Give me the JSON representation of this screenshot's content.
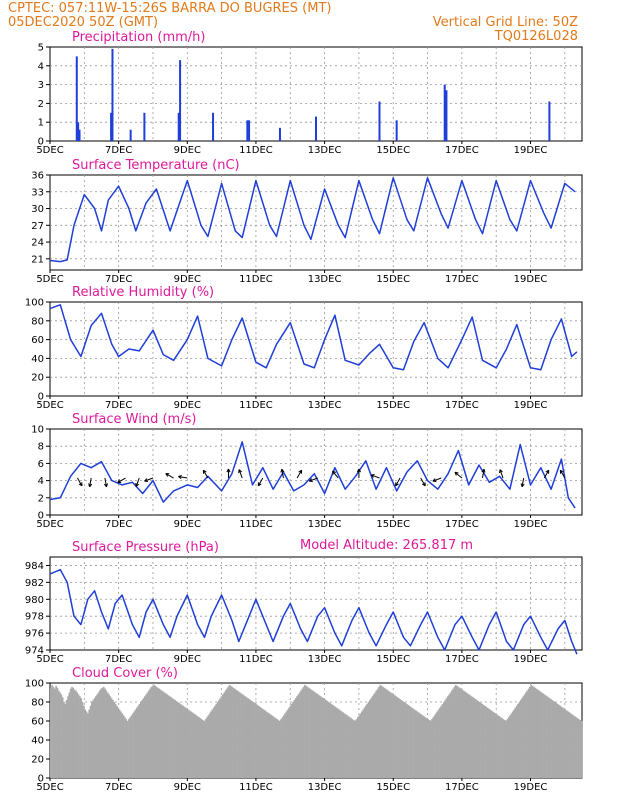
{
  "header": {
    "line1_left": "CPTEC:   057:11W-15:26S   BARRA DO BUGRES (MT)",
    "line2_left": "05DEC2020 50Z (GMT)",
    "line2_right": "Vertical Grid Line: 50Z",
    "line3_right": "TQ0126L028"
  },
  "colors": {
    "header": "#e07a1a",
    "panel_title": "#e0199a",
    "series": "#1f3fd8",
    "cloud": "#aaaaaa"
  },
  "x_labels": [
    "5DEC",
    "7DEC",
    "9DEC",
    "11DEC",
    "13DEC",
    "15DEC",
    "17DEC",
    "19DEC"
  ],
  "chart_data": [
    {
      "id": "precip",
      "type": "bar",
      "title": "Precipitation (mm/h)",
      "ylim": [
        0,
        5
      ],
      "yticks": [
        0,
        1,
        2,
        3,
        4,
        5
      ],
      "x_unit": "days since 5DEC 00Z",
      "points": [
        [
          0.78,
          4.5
        ],
        [
          0.82,
          1.0
        ],
        [
          0.86,
          0.6
        ],
        [
          1.78,
          1.5
        ],
        [
          1.82,
          4.9
        ],
        [
          2.35,
          0.6
        ],
        [
          2.75,
          1.5
        ],
        [
          3.75,
          1.5
        ],
        [
          3.79,
          4.3
        ],
        [
          4.75,
          1.5
        ],
        [
          5.75,
          1.1
        ],
        [
          5.8,
          1.1
        ],
        [
          6.7,
          0.7
        ],
        [
          7.75,
          1.3
        ],
        [
          9.6,
          2.1
        ],
        [
          10.1,
          1.1
        ],
        [
          11.5,
          3.0
        ],
        [
          11.55,
          2.7
        ],
        [
          14.55,
          2.1
        ]
      ]
    },
    {
      "id": "temp",
      "type": "line",
      "title": "Surface Temperature (nC)",
      "ylim": [
        19,
        36
      ],
      "yticks": [
        21,
        24,
        27,
        30,
        33,
        36
      ],
      "x_unit": "days since 5DEC 00Z",
      "points": [
        [
          0.0,
          20.7
        ],
        [
          0.3,
          20.5
        ],
        [
          0.5,
          20.8
        ],
        [
          0.7,
          27.0
        ],
        [
          1.0,
          32.5
        ],
        [
          1.3,
          30.0
        ],
        [
          1.5,
          26.0
        ],
        [
          1.7,
          31.5
        ],
        [
          2.0,
          34.0
        ],
        [
          2.3,
          30.0
        ],
        [
          2.5,
          26.0
        ],
        [
          2.8,
          31.0
        ],
        [
          3.1,
          33.5
        ],
        [
          3.5,
          26.0
        ],
        [
          4.0,
          35.0
        ],
        [
          4.4,
          27.0
        ],
        [
          4.6,
          25.0
        ],
        [
          5.0,
          34.5
        ],
        [
          5.4,
          26.0
        ],
        [
          5.6,
          24.8
        ],
        [
          6.0,
          35.0
        ],
        [
          6.4,
          27.0
        ],
        [
          6.6,
          25.0
        ],
        [
          7.0,
          35.0
        ],
        [
          7.4,
          27.0
        ],
        [
          7.6,
          24.5
        ],
        [
          8.0,
          33.5
        ],
        [
          8.4,
          27.0
        ],
        [
          8.6,
          24.8
        ],
        [
          9.0,
          35.0
        ],
        [
          9.4,
          28.0
        ],
        [
          9.6,
          25.5
        ],
        [
          10.0,
          35.5
        ],
        [
          10.4,
          28.0
        ],
        [
          10.6,
          26.0
        ],
        [
          11.0,
          35.5
        ],
        [
          11.4,
          29.0
        ],
        [
          11.6,
          26.5
        ],
        [
          12.0,
          35.0
        ],
        [
          12.4,
          28.0
        ],
        [
          12.6,
          25.5
        ],
        [
          13.0,
          35.0
        ],
        [
          13.4,
          28.0
        ],
        [
          13.6,
          26.0
        ],
        [
          14.0,
          35.0
        ],
        [
          14.4,
          29.0
        ],
        [
          14.6,
          26.5
        ],
        [
          15.0,
          34.5
        ],
        [
          15.3,
          33.0
        ]
      ]
    },
    {
      "id": "rh",
      "type": "line",
      "title": "Relative Humidity (%)",
      "ylim": [
        0,
        100
      ],
      "yticks": [
        0,
        20,
        40,
        60,
        80,
        100
      ],
      "x_unit": "days since 5DEC 00Z",
      "points": [
        [
          0.0,
          93.0
        ],
        [
          0.3,
          97.0
        ],
        [
          0.6,
          60.0
        ],
        [
          0.9,
          42.0
        ],
        [
          1.2,
          75.0
        ],
        [
          1.5,
          88.0
        ],
        [
          1.8,
          55.0
        ],
        [
          2.0,
          42.0
        ],
        [
          2.3,
          50.0
        ],
        [
          2.6,
          48.0
        ],
        [
          3.0,
          70.0
        ],
        [
          3.3,
          44.0
        ],
        [
          3.6,
          38.0
        ],
        [
          4.0,
          60.0
        ],
        [
          4.3,
          85.0
        ],
        [
          4.6,
          40.0
        ],
        [
          5.0,
          32.0
        ],
        [
          5.3,
          60.0
        ],
        [
          5.6,
          83.0
        ],
        [
          6.0,
          36.0
        ],
        [
          6.3,
          30.0
        ],
        [
          6.6,
          55.0
        ],
        [
          7.0,
          78.0
        ],
        [
          7.4,
          34.0
        ],
        [
          7.7,
          30.0
        ],
        [
          8.0,
          60.0
        ],
        [
          8.3,
          86.0
        ],
        [
          8.6,
          38.0
        ],
        [
          9.0,
          33.0
        ],
        [
          9.3,
          45.0
        ],
        [
          9.6,
          55.0
        ],
        [
          10.0,
          30.0
        ],
        [
          10.3,
          28.0
        ],
        [
          10.6,
          58.0
        ],
        [
          10.9,
          78.0
        ],
        [
          11.3,
          40.0
        ],
        [
          11.6,
          30.0
        ],
        [
          12.0,
          60.0
        ],
        [
          12.3,
          84.0
        ],
        [
          12.6,
          38.0
        ],
        [
          13.0,
          30.0
        ],
        [
          13.3,
          50.0
        ],
        [
          13.6,
          76.0
        ],
        [
          14.0,
          30.0
        ],
        [
          14.3,
          28.0
        ],
        [
          14.6,
          60.0
        ],
        [
          14.9,
          82.0
        ],
        [
          15.2,
          42.0
        ],
        [
          15.35,
          47.0
        ]
      ]
    },
    {
      "id": "wind",
      "type": "line",
      "title": "Surface Wind (m/s)",
      "ylim": [
        0,
        10
      ],
      "yticks": [
        0,
        2,
        4,
        6,
        8,
        10
      ],
      "x_unit": "days since 5DEC 00Z",
      "points": [
        [
          0.0,
          1.8
        ],
        [
          0.3,
          2.0
        ],
        [
          0.6,
          4.5
        ],
        [
          0.9,
          6.0
        ],
        [
          1.2,
          5.5
        ],
        [
          1.5,
          6.2
        ],
        [
          1.8,
          4.0
        ],
        [
          2.1,
          3.5
        ],
        [
          2.4,
          3.8
        ],
        [
          2.7,
          2.5
        ],
        [
          3.0,
          4.0
        ],
        [
          3.3,
          1.5
        ],
        [
          3.6,
          2.8
        ],
        [
          4.0,
          3.5
        ],
        [
          4.3,
          3.2
        ],
        [
          4.6,
          4.5
        ],
        [
          5.0,
          2.8
        ],
        [
          5.3,
          4.8
        ],
        [
          5.6,
          8.5
        ],
        [
          5.9,
          3.5
        ],
        [
          6.2,
          5.5
        ],
        [
          6.5,
          3.0
        ],
        [
          6.8,
          5.0
        ],
        [
          7.1,
          2.8
        ],
        [
          7.4,
          3.5
        ],
        [
          7.7,
          4.8
        ],
        [
          8.0,
          2.5
        ],
        [
          8.3,
          5.5
        ],
        [
          8.6,
          3.0
        ],
        [
          8.9,
          4.5
        ],
        [
          9.2,
          6.3
        ],
        [
          9.5,
          3.0
        ],
        [
          9.8,
          5.5
        ],
        [
          10.1,
          2.8
        ],
        [
          10.4,
          5.0
        ],
        [
          10.7,
          6.3
        ],
        [
          11.0,
          4.0
        ],
        [
          11.3,
          3.0
        ],
        [
          11.6,
          4.8
        ],
        [
          11.9,
          7.5
        ],
        [
          12.2,
          3.5
        ],
        [
          12.5,
          5.8
        ],
        [
          12.8,
          3.8
        ],
        [
          13.1,
          4.5
        ],
        [
          13.4,
          3.0
        ],
        [
          13.7,
          8.2
        ],
        [
          14.0,
          3.5
        ],
        [
          14.3,
          5.5
        ],
        [
          14.6,
          3.0
        ],
        [
          14.9,
          6.5
        ],
        [
          15.1,
          2.0
        ],
        [
          15.3,
          0.8
        ]
      ],
      "arrows_x": [
        0.8,
        1.2,
        1.6,
        2.2,
        2.6,
        3.0,
        3.6,
        4.0,
        4.6,
        5.2,
        5.6,
        6.2,
        6.8,
        7.2,
        7.8,
        8.4,
        9.0,
        9.6,
        10.2,
        10.8,
        11.4,
        12.0,
        12.6,
        13.2,
        13.8,
        14.4,
        15.0
      ],
      "arrows_angle": [
        300,
        260,
        280,
        210,
        250,
        200,
        150,
        170,
        120,
        90,
        110,
        240,
        100,
        60,
        200,
        130,
        90,
        160,
        240,
        300,
        200,
        140,
        80,
        110,
        260,
        60,
        120
      ]
    },
    {
      "id": "pres",
      "type": "line",
      "title": "Surface Pressure (hPa)",
      "ylim": [
        974,
        985
      ],
      "yticks": [
        974,
        976,
        978,
        980,
        982,
        984
      ],
      "x_unit": "days since 5DEC 00Z",
      "points": [
        [
          0.0,
          983.0
        ],
        [
          0.3,
          983.5
        ],
        [
          0.5,
          982.0
        ],
        [
          0.7,
          978.0
        ],
        [
          0.9,
          977.0
        ],
        [
          1.1,
          980.0
        ],
        [
          1.3,
          981.0
        ],
        [
          1.5,
          978.5
        ],
        [
          1.7,
          976.5
        ],
        [
          1.9,
          979.5
        ],
        [
          2.1,
          980.5
        ],
        [
          2.4,
          977.0
        ],
        [
          2.6,
          975.5
        ],
        [
          2.8,
          978.5
        ],
        [
          3.0,
          980.0
        ],
        [
          3.3,
          977.0
        ],
        [
          3.5,
          975.5
        ],
        [
          3.7,
          978.0
        ],
        [
          4.0,
          980.5
        ],
        [
          4.3,
          977.0
        ],
        [
          4.5,
          975.5
        ],
        [
          4.7,
          978.0
        ],
        [
          5.0,
          980.5
        ],
        [
          5.3,
          977.5
        ],
        [
          5.5,
          975.0
        ],
        [
          5.8,
          978.0
        ],
        [
          6.0,
          980.0
        ],
        [
          6.3,
          977.0
        ],
        [
          6.5,
          975.0
        ],
        [
          6.8,
          978.0
        ],
        [
          7.0,
          979.5
        ],
        [
          7.3,
          976.5
        ],
        [
          7.5,
          975.0
        ],
        [
          7.8,
          978.0
        ],
        [
          8.0,
          979.0
        ],
        [
          8.3,
          976.0
        ],
        [
          8.5,
          974.5
        ],
        [
          8.8,
          977.5
        ],
        [
          9.0,
          979.0
        ],
        [
          9.3,
          976.0
        ],
        [
          9.5,
          974.5
        ],
        [
          9.8,
          977.0
        ],
        [
          10.0,
          978.5
        ],
        [
          10.3,
          975.5
        ],
        [
          10.5,
          974.5
        ],
        [
          10.8,
          977.0
        ],
        [
          11.0,
          978.5
        ],
        [
          11.3,
          975.5
        ],
        [
          11.5,
          974.0
        ],
        [
          11.8,
          977.0
        ],
        [
          12.0,
          978.0
        ],
        [
          12.3,
          975.5
        ],
        [
          12.5,
          974.0
        ],
        [
          12.8,
          977.0
        ],
        [
          13.0,
          978.5
        ],
        [
          13.3,
          975.0
        ],
        [
          13.5,
          974.0
        ],
        [
          13.8,
          977.0
        ],
        [
          14.0,
          978.0
        ],
        [
          14.3,
          975.5
        ],
        [
          14.5,
          974.0
        ],
        [
          14.8,
          976.5
        ],
        [
          15.0,
          977.5
        ],
        [
          15.2,
          975.0
        ],
        [
          15.35,
          973.5
        ]
      ],
      "altitude_label": "Model Altitude: 265.817 m"
    },
    {
      "id": "cloud",
      "type": "bar",
      "title": "Cloud Cover (%)",
      "ylim": [
        0,
        100
      ],
      "yticks": [
        0,
        20,
        40,
        60,
        80,
        100
      ],
      "x_unit": "days since 5DEC 00Z",
      "values": [
        95,
        98,
        96,
        94,
        97,
        95,
        92,
        90,
        88,
        85,
        80,
        78,
        82,
        86,
        90,
        94,
        96,
        95,
        93,
        92,
        90,
        88,
        86,
        84,
        80,
        76,
        72,
        70,
        68,
        72,
        76,
        80,
        82,
        84,
        86,
        88,
        90,
        92,
        94,
        95,
        96,
        94,
        92,
        90,
        88,
        86,
        84,
        82,
        80,
        78,
        76,
        74,
        72,
        70,
        68,
        66,
        64,
        62,
        60,
        62,
        64,
        66,
        68,
        70,
        72,
        74,
        76,
        78,
        80,
        82,
        84,
        86,
        88,
        90,
        92,
        94,
        96,
        97,
        98,
        97,
        96,
        95,
        94,
        93,
        92,
        91,
        90,
        89,
        88,
        87,
        86,
        85,
        84,
        83,
        82,
        81,
        80,
        79,
        78,
        77,
        76,
        75,
        74,
        73,
        72,
        71,
        70,
        69,
        68,
        67,
        66,
        65,
        64,
        63,
        62,
        61,
        60,
        62,
        64,
        66,
        68,
        70,
        72,
        74,
        76,
        78,
        80,
        82,
        84,
        86,
        88,
        90,
        92,
        94,
        96,
        98,
        97,
        96,
        95,
        94,
        93,
        92,
        91,
        90,
        89,
        88,
        87,
        86,
        85,
        84,
        83,
        82,
        81,
        80,
        79,
        78,
        77,
        76,
        75,
        74,
        73,
        72,
        71,
        70,
        69,
        68,
        67,
        66,
        65,
        64,
        63,
        62,
        61,
        60,
        62,
        64,
        66,
        68,
        70,
        72,
        74,
        76,
        78,
        80,
        82,
        84,
        86,
        88,
        90,
        92,
        94,
        96,
        98,
        97,
        96,
        95,
        94,
        93,
        92,
        91,
        90,
        89,
        88,
        87,
        86,
        85,
        84,
        83,
        82,
        81,
        80,
        79,
        78,
        77,
        76,
        75,
        74,
        73,
        72,
        71,
        70,
        69,
        68,
        67,
        66,
        65,
        64,
        63,
        62,
        61,
        60,
        62,
        64,
        66,
        68,
        70,
        72,
        74,
        76,
        78,
        80,
        82,
        84,
        86,
        88,
        90,
        92,
        94,
        96,
        98,
        97,
        96,
        95,
        94,
        93,
        92,
        91,
        90,
        89,
        88,
        87,
        86,
        85,
        84,
        83,
        82,
        81,
        80,
        79,
        78,
        77,
        76,
        75,
        74,
        73,
        72,
        71,
        70,
        69,
        68,
        67,
        66,
        65,
        64,
        63,
        62,
        61,
        60,
        62,
        64,
        66,
        68,
        70,
        72,
        74,
        76,
        78,
        80,
        82,
        84,
        86,
        88,
        90,
        92,
        94,
        96,
        98,
        97,
        96,
        95,
        94,
        93,
        92,
        91,
        90,
        89,
        88,
        87,
        86,
        85,
        84,
        83,
        82,
        81,
        80,
        79,
        78,
        77,
        76,
        75,
        74,
        73,
        72,
        71,
        70,
        69,
        68,
        67,
        66,
        65,
        64,
        63,
        62,
        61,
        60,
        62,
        64,
        66,
        68,
        70,
        72,
        74,
        76,
        78,
        80,
        82,
        84,
        86,
        88,
        90,
        92,
        94,
        96,
        98,
        97,
        96,
        95,
        94,
        93,
        92,
        91,
        90,
        89,
        88,
        87,
        86,
        85,
        84,
        83,
        82,
        81,
        80,
        79,
        78,
        77,
        76,
        75,
        74,
        73,
        72,
        71,
        70,
        69,
        68,
        67,
        66,
        65,
        64,
        63,
        62,
        61,
        60
      ]
    }
  ]
}
